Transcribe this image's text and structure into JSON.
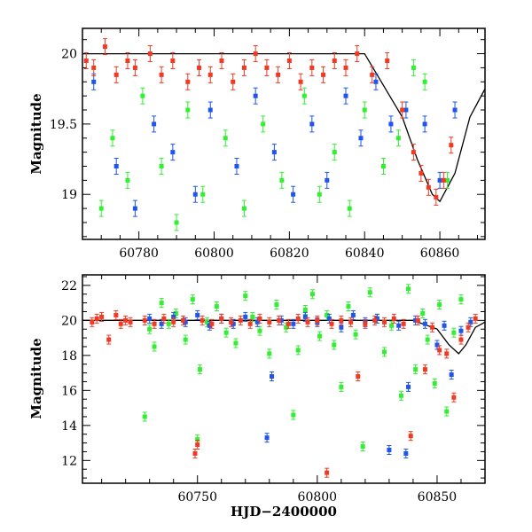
{
  "colors": {
    "green": "#33ee33",
    "blue": "#1f55e8",
    "red": "#f03a24",
    "model": "#000000"
  },
  "chart_data": [
    {
      "type": "scatter",
      "title": "",
      "xlabel": "",
      "ylabel": "Magnitude",
      "xlim": [
        60765,
        60872
      ],
      "ylim": [
        20.18,
        18.68
      ],
      "y_inverted": true,
      "xticks": [
        60780,
        60800,
        60820,
        60840,
        60860
      ],
      "yticks": [
        19,
        19.5,
        20
      ],
      "ytick_labels": [
        "19",
        "19.5",
        "20"
      ],
      "series": [
        {
          "color_key": "green",
          "values": [
            [
              60770,
              18.9
            ],
            [
              60773,
              19.4
            ],
            [
              60777,
              19.1
            ],
            [
              60781,
              19.7
            ],
            [
              60786,
              19.2
            ],
            [
              60790,
              18.8
            ],
            [
              60793,
              19.6
            ],
            [
              60797,
              19.0
            ],
            [
              60803,
              19.4
            ],
            [
              60808,
              18.9
            ],
            [
              60813,
              19.5
            ],
            [
              60818,
              19.1
            ],
            [
              60824,
              19.7
            ],
            [
              60828,
              19.0
            ],
            [
              60832,
              19.3
            ],
            [
              60836,
              18.9
            ],
            [
              60840,
              19.6
            ],
            [
              60845,
              19.2
            ],
            [
              60849,
              19.4
            ],
            [
              60853,
              19.9
            ],
            [
              60856,
              19.8
            ],
            [
              60862,
              19.1
            ]
          ]
        },
        {
          "color_key": "blue",
          "values": [
            [
              60768,
              19.8
            ],
            [
              60774,
              19.2
            ],
            [
              60779,
              18.9
            ],
            [
              60784,
              19.5
            ],
            [
              60789,
              19.3
            ],
            [
              60795,
              19.0
            ],
            [
              60799,
              19.6
            ],
            [
              60806,
              19.2
            ],
            [
              60811,
              19.7
            ],
            [
              60816,
              19.3
            ],
            [
              60821,
              19.0
            ],
            [
              60826,
              19.5
            ],
            [
              60830,
              19.1
            ],
            [
              60835,
              19.7
            ],
            [
              60839,
              19.4
            ],
            [
              60843,
              19.8
            ],
            [
              60847,
              19.5
            ],
            [
              60851,
              19.6
            ],
            [
              60856,
              19.5
            ],
            [
              60860,
              19.1
            ],
            [
              60864,
              19.6
            ]
          ]
        },
        {
          "color_key": "red",
          "values": [
            [
              60766,
              19.95
            ],
            [
              60768,
              19.9
            ],
            [
              60771,
              20.05
            ],
            [
              60774,
              19.85
            ],
            [
              60777,
              19.95
            ],
            [
              60779,
              19.9
            ],
            [
              60783,
              20.0
            ],
            [
              60786,
              19.85
            ],
            [
              60789,
              19.95
            ],
            [
              60793,
              19.8
            ],
            [
              60796,
              19.9
            ],
            [
              60799,
              19.85
            ],
            [
              60802,
              19.95
            ],
            [
              60805,
              19.8
            ],
            [
              60808,
              19.9
            ],
            [
              60811,
              20.0
            ],
            [
              60814,
              19.9
            ],
            [
              60817,
              19.85
            ],
            [
              60820,
              19.95
            ],
            [
              60823,
              19.8
            ],
            [
              60826,
              19.9
            ],
            [
              60829,
              19.85
            ],
            [
              60832,
              19.95
            ],
            [
              60835,
              19.9
            ],
            [
              60838,
              20.0
            ],
            [
              60842,
              19.85
            ],
            [
              60846,
              19.95
            ],
            [
              60850,
              19.6
            ],
            [
              60853,
              19.3
            ],
            [
              60855,
              19.15
            ],
            [
              60857,
              19.05
            ],
            [
              60859,
              18.98
            ],
            [
              60861,
              19.1
            ],
            [
              60863,
              19.35
            ]
          ]
        }
      ],
      "model": [
        [
          60765,
          20.0
        ],
        [
          60840,
          20.0
        ],
        [
          60850,
          19.55
        ],
        [
          60854,
          19.25
        ],
        [
          60858,
          19.0
        ],
        [
          60860,
          18.95
        ],
        [
          60864,
          19.15
        ],
        [
          60868,
          19.55
        ],
        [
          60872,
          19.75
        ]
      ]
    },
    {
      "type": "scatter",
      "title": "",
      "xlabel": "HJD−2400000",
      "ylabel": "Magnitude",
      "xlim": [
        60702,
        60870
      ],
      "ylim": [
        22.6,
        10.7
      ],
      "y_inverted": true,
      "xticks": [
        60750,
        60800,
        60850
      ],
      "yticks": [
        12,
        14,
        16,
        18,
        20,
        22
      ],
      "ytick_labels": [
        "12",
        "14",
        "16",
        "18",
        "20",
        "22"
      ],
      "series": [
        {
          "color_key": "green",
          "values": [
            [
              60728,
              14.5
            ],
            [
              60730,
              19.5
            ],
            [
              60732,
              18.5
            ],
            [
              60735,
              21.0
            ],
            [
              60738,
              19.8
            ],
            [
              60741,
              20.4
            ],
            [
              60745,
              18.9
            ],
            [
              60748,
              21.2
            ],
            [
              60750,
              13.2
            ],
            [
              60751,
              17.2
            ],
            [
              60754,
              19.9
            ],
            [
              60758,
              20.8
            ],
            [
              60762,
              19.3
            ],
            [
              60766,
              18.7
            ],
            [
              60770,
              21.4
            ],
            [
              60773,
              20.2
            ],
            [
              60776,
              19.4
            ],
            [
              60780,
              18.1
            ],
            [
              60783,
              20.9
            ],
            [
              60787,
              19.6
            ],
            [
              60790,
              14.6
            ],
            [
              60792,
              18.3
            ],
            [
              60795,
              20.6
            ],
            [
              60798,
              21.5
            ],
            [
              60801,
              19.1
            ],
            [
              60804,
              20.3
            ],
            [
              60807,
              18.6
            ],
            [
              60810,
              16.2
            ],
            [
              60813,
              20.8
            ],
            [
              60816,
              19.2
            ],
            [
              60819,
              12.8
            ],
            [
              60822,
              21.6
            ],
            [
              60825,
              20.1
            ],
            [
              60828,
              18.2
            ],
            [
              60831,
              19.7
            ],
            [
              60835,
              15.7
            ],
            [
              60838,
              21.8
            ],
            [
              60841,
              17.2
            ],
            [
              60844,
              20.4
            ],
            [
              60846,
              18.9
            ],
            [
              60849,
              16.4
            ],
            [
              60851,
              20.9
            ],
            [
              60854,
              14.8
            ],
            [
              60857,
              19.3
            ],
            [
              60860,
              21.2
            ]
          ]
        },
        {
          "color_key": "blue",
          "values": [
            [
              60730,
              20.1
            ],
            [
              60735,
              19.8
            ],
            [
              60740,
              20.2
            ],
            [
              60745,
              19.9
            ],
            [
              60750,
              20.3
            ],
            [
              60755,
              19.7
            ],
            [
              60760,
              20.1
            ],
            [
              60765,
              19.8
            ],
            [
              60770,
              20.2
            ],
            [
              60775,
              19.9
            ],
            [
              60779,
              13.3
            ],
            [
              60781,
              16.8
            ],
            [
              60785,
              20.0
            ],
            [
              60790,
              19.8
            ],
            [
              60795,
              20.2
            ],
            [
              60800,
              19.9
            ],
            [
              60805,
              20.1
            ],
            [
              60810,
              19.6
            ],
            [
              60815,
              20.3
            ],
            [
              60820,
              19.9
            ],
            [
              60825,
              20.1
            ],
            [
              60830,
              12.6
            ],
            [
              60834,
              19.7
            ],
            [
              60837,
              12.4
            ],
            [
              60838,
              16.2
            ],
            [
              60841,
              20.0
            ],
            [
              60845,
              19.8
            ],
            [
              60850,
              18.6
            ],
            [
              60853,
              19.7
            ],
            [
              60856,
              16.9
            ],
            [
              60860,
              19.4
            ],
            [
              60864,
              19.9
            ]
          ]
        },
        {
          "color_key": "red",
          "values": [
            [
              60706,
              19.9
            ],
            [
              60708,
              20.1
            ],
            [
              60710,
              20.2
            ],
            [
              60713,
              18.9
            ],
            [
              60716,
              20.3
            ],
            [
              60718,
              19.8
            ],
            [
              60720,
              20.0
            ],
            [
              60722,
              19.9
            ],
            [
              60728,
              20.0
            ],
            [
              60732,
              19.8
            ],
            [
              60736,
              20.1
            ],
            [
              60740,
              19.9
            ],
            [
              60744,
              20.0
            ],
            [
              60749,
              12.4
            ],
            [
              60750,
              12.9
            ],
            [
              60752,
              20.0
            ],
            [
              60756,
              19.8
            ],
            [
              60760,
              20.1
            ],
            [
              60764,
              19.9
            ],
            [
              60768,
              20.0
            ],
            [
              60772,
              19.8
            ],
            [
              60776,
              20.1
            ],
            [
              60780,
              19.9
            ],
            [
              60784,
              20.0
            ],
            [
              60788,
              19.8
            ],
            [
              60792,
              20.1
            ],
            [
              60796,
              19.9
            ],
            [
              60800,
              20.0
            ],
            [
              60804,
              11.3
            ],
            [
              60806,
              19.8
            ],
            [
              60810,
              20.0
            ],
            [
              60814,
              19.9
            ],
            [
              60817,
              16.8
            ],
            [
              60820,
              19.8
            ],
            [
              60824,
              20.0
            ],
            [
              60828,
              19.9
            ],
            [
              60832,
              20.1
            ],
            [
              60836,
              19.8
            ],
            [
              60839,
              13.4
            ],
            [
              60842,
              20.0
            ],
            [
              60845,
              17.2
            ],
            [
              60848,
              19.6
            ],
            [
              60851,
              18.3
            ],
            [
              60854,
              18.1
            ],
            [
              60857,
              15.6
            ],
            [
              60860,
              18.9
            ],
            [
              60863,
              19.6
            ],
            [
              60866,
              20.1
            ]
          ]
        }
      ],
      "model": [
        [
          60702,
          20.0
        ],
        [
          60840,
          20.0
        ],
        [
          60850,
          19.5
        ],
        [
          60855,
          18.6
        ],
        [
          60859,
          18.1
        ],
        [
          60862,
          18.6
        ],
        [
          60866,
          19.6
        ],
        [
          60870,
          19.9
        ]
      ]
    }
  ]
}
